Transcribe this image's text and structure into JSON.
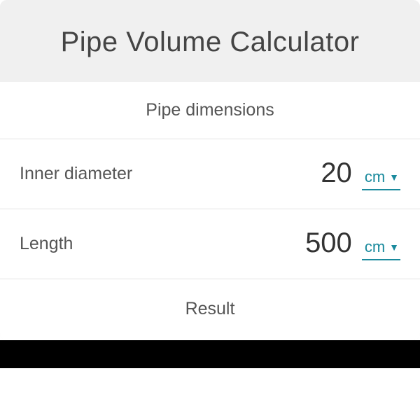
{
  "header": {
    "title": "Pipe Volume Calculator"
  },
  "sections": {
    "dimensions": {
      "title": "Pipe dimensions",
      "fields": {
        "inner_diameter": {
          "label": "Inner diameter",
          "value": "20",
          "unit": "cm"
        },
        "length": {
          "label": "Length",
          "value": "500",
          "unit": "cm"
        }
      }
    },
    "result": {
      "title": "Result"
    }
  },
  "colors": {
    "header_bg": "#f0f0f0",
    "card_bg": "#ffffff",
    "border": "#e4e4e4",
    "title_text": "#444444",
    "label_text": "#555555",
    "value_text": "#333333",
    "accent": "#1a8a9d",
    "footer_bg": "#000000"
  },
  "typography": {
    "title_size_pt": 40,
    "section_title_size_pt": 25,
    "label_size_pt": 25,
    "value_size_pt": 40,
    "unit_size_pt": 22
  }
}
